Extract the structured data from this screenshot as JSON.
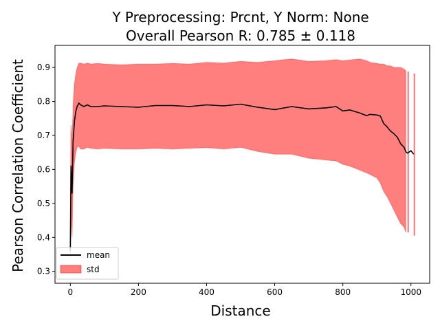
{
  "chart_data": {
    "type": "line",
    "title_line1": "Y Preprocessing: Prcnt, Y Norm: None",
    "title_line2": "Overall Pearson R: 0.785 ± 0.118",
    "xlabel": "Distance",
    "ylabel": "Pearson Correlation Coefficient",
    "xlim": [
      -45,
      1055
    ],
    "ylim": [
      0.265,
      0.965
    ],
    "xticks": [
      0,
      200,
      400,
      600,
      800,
      1000
    ],
    "yticks": [
      0.3,
      0.4,
      0.5,
      0.6,
      0.7,
      0.8,
      0.9
    ],
    "legend_position": "lower-left",
    "grid": false,
    "series": [
      {
        "name": "mean",
        "kind": "line",
        "color": "#000000",
        "x": [
          0,
          2,
          5,
          8,
          12,
          16,
          20,
          25,
          30,
          40,
          50,
          60,
          80,
          100,
          150,
          200,
          250,
          300,
          350,
          400,
          450,
          500,
          550,
          600,
          650,
          700,
          750,
          780,
          800,
          820,
          850,
          870,
          880,
          900,
          910,
          920,
          930,
          940,
          950,
          960,
          970,
          980,
          985,
          990,
          1000,
          1008
        ],
        "y": [
          0.36,
          0.61,
          0.53,
          0.68,
          0.74,
          0.77,
          0.785,
          0.795,
          0.79,
          0.785,
          0.79,
          0.785,
          0.785,
          0.787,
          0.785,
          0.783,
          0.788,
          0.788,
          0.785,
          0.79,
          0.787,
          0.792,
          0.783,
          0.776,
          0.785,
          0.778,
          0.781,
          0.785,
          0.772,
          0.775,
          0.766,
          0.758,
          0.762,
          0.76,
          0.757,
          0.735,
          0.725,
          0.713,
          0.705,
          0.695,
          0.675,
          0.665,
          0.652,
          0.648,
          0.655,
          0.645
        ]
      },
      {
        "name": "std",
        "kind": "band",
        "color": "#ff0000",
        "opacity": 0.5,
        "x": [
          0,
          2,
          5,
          8,
          12,
          16,
          20,
          25,
          30,
          40,
          50,
          60,
          80,
          100,
          150,
          200,
          250,
          300,
          350,
          400,
          450,
          500,
          550,
          600,
          650,
          700,
          750,
          780,
          800,
          820,
          850,
          870,
          880,
          900,
          910,
          920,
          930,
          940,
          950,
          960,
          970,
          980,
          985
        ],
        "upper": [
          0.5,
          0.73,
          0.68,
          0.79,
          0.85,
          0.88,
          0.9,
          0.912,
          0.913,
          0.91,
          0.913,
          0.91,
          0.912,
          0.91,
          0.908,
          0.91,
          0.91,
          0.912,
          0.91,
          0.915,
          0.913,
          0.918,
          0.915,
          0.92,
          0.925,
          0.918,
          0.92,
          0.923,
          0.92,
          0.922,
          0.925,
          0.92,
          0.915,
          0.912,
          0.91,
          0.91,
          0.905,
          0.905,
          0.9,
          0.9,
          0.9,
          0.895,
          0.89
        ],
        "lower": [
          0.34,
          0.48,
          0.4,
          0.55,
          0.62,
          0.65,
          0.665,
          0.668,
          0.66,
          0.66,
          0.665,
          0.662,
          0.66,
          0.662,
          0.66,
          0.66,
          0.662,
          0.66,
          0.662,
          0.664,
          0.66,
          0.665,
          0.653,
          0.645,
          0.645,
          0.633,
          0.628,
          0.625,
          0.615,
          0.61,
          0.598,
          0.59,
          0.585,
          0.575,
          0.56,
          0.535,
          0.52,
          0.5,
          0.48,
          0.46,
          0.44,
          0.43,
          0.415
        ]
      }
    ],
    "outlier_spikes": [
      {
        "x": 992,
        "low": 0.415,
        "high": 0.888
      },
      {
        "x": 1010,
        "low": 0.405,
        "high": 0.882
      }
    ]
  }
}
